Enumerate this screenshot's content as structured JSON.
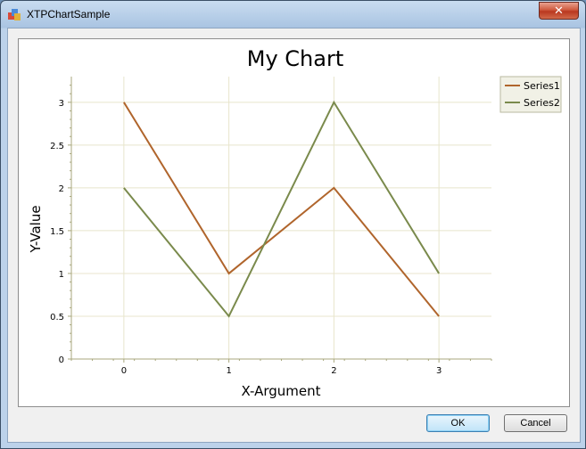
{
  "window": {
    "title": "XTPChartSample",
    "close_glyph": "✕"
  },
  "buttons": {
    "ok": "OK",
    "cancel": "Cancel"
  },
  "colors": {
    "series1": "#b0652c",
    "series2": "#7a8a4c",
    "grid": "#e8e5cc",
    "axis": "#a8a77d",
    "legend_bg": "#f1f1e6"
  },
  "chart_data": {
    "type": "line",
    "title": "My Chart",
    "xlabel": "X-Argument",
    "ylabel": "Y-Value",
    "x": [
      0,
      1,
      2,
      3
    ],
    "x_ticks": [
      "0",
      "1",
      "2",
      "3"
    ],
    "y_ticks": [
      "0",
      "0.5",
      "1",
      "1.5",
      "2",
      "2.5",
      "3"
    ],
    "xlim": [
      -0.5,
      3.5
    ],
    "ylim": [
      0,
      3.3
    ],
    "grid": true,
    "legend_position": "top-right",
    "series": [
      {
        "name": "Series1",
        "values": [
          3,
          1,
          2,
          0.5
        ]
      },
      {
        "name": "Series2",
        "values": [
          2,
          0.5,
          3,
          1
        ]
      }
    ]
  }
}
